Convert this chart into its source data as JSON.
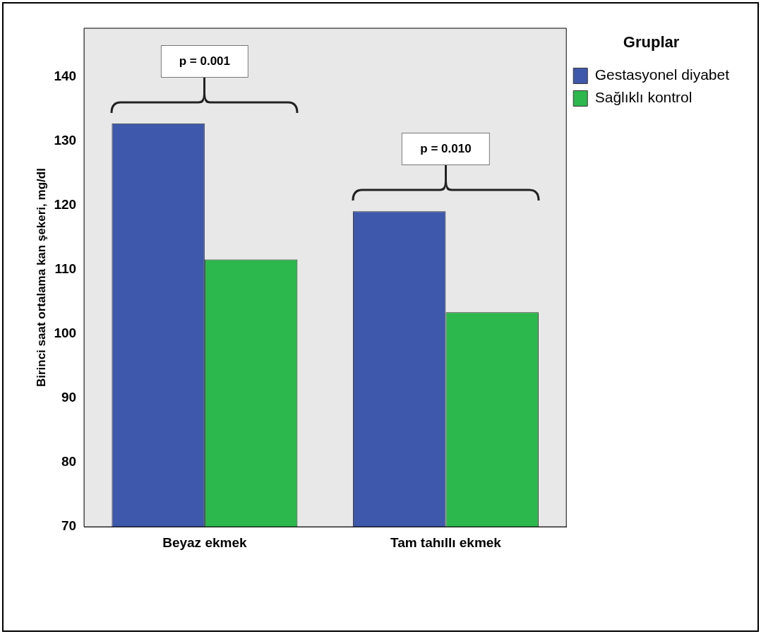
{
  "chart_data": {
    "type": "bar",
    "ylabel": "Birinci saat ortalama kan şekeri, mg/dl",
    "legend_title": "Gruplar",
    "legend": "top right",
    "grid": false,
    "categories": [
      "Beyaz ekmek",
      "Tam tahıllı ekmek"
    ],
    "series": [
      {
        "name": "Gestasyonel diyabet",
        "color": "#3e58ac",
        "values": [
          132.8,
          119.1
        ]
      },
      {
        "name": "Sağlıklı kontrol",
        "color": "#2db84d",
        "values": [
          111.6,
          103.4
        ]
      }
    ],
    "ylim": [
      70,
      147.6
    ],
    "yticks": [
      70,
      80,
      90,
      100,
      110,
      120,
      130,
      140
    ],
    "annotations": [
      "p = 0.001",
      "p = 0.010"
    ]
  }
}
